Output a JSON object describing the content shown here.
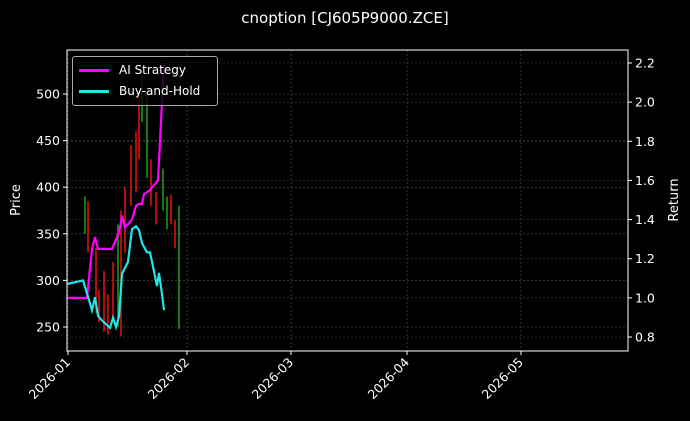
{
  "chart_data": {
    "type": "line",
    "title": "cnoption [CJ605P9000.ZCE]",
    "xlabel": "",
    "ylabel": "Price",
    "y2label": "Return",
    "x_ticks": [
      "2026-01",
      "2026-02",
      "2026-03",
      "2026-04",
      "2026-05"
    ],
    "y_ticks": [
      250,
      300,
      350,
      400,
      450,
      500
    ],
    "y2_ticks": [
      0.8,
      1.0,
      1.2,
      1.4,
      1.6,
      1.8,
      2.0,
      2.2
    ],
    "ylim": [
      225,
      545
    ],
    "y2lim": [
      0.73,
      2.25
    ],
    "grid": true,
    "legend_position": "upper left",
    "series": [
      {
        "name": "AI Strategy",
        "color": "#ff00ff",
        "axis": "right",
        "x": [
          67,
          83,
          87,
          92,
          95,
          98,
          101,
          112,
          117,
          120,
          122,
          125,
          132,
          136,
          139,
          142,
          144,
          147,
          150,
          153,
          158,
          164
        ],
        "values": [
          1.0,
          1.0,
          1.0,
          1.25,
          1.31,
          1.25,
          1.25,
          1.25,
          1.31,
          1.36,
          1.42,
          1.36,
          1.4,
          1.47,
          1.48,
          1.48,
          1.53,
          1.54,
          1.55,
          1.57,
          1.6,
          2.2
        ]
      },
      {
        "name": "Buy-and-Hold",
        "color": "#22e5e5",
        "axis": "left",
        "x": [
          67,
          83,
          87,
          92,
          95,
          98,
          101,
          106,
          110,
          113,
          116,
          119,
          122,
          128,
          132,
          136,
          139,
          142,
          147,
          150,
          152,
          157,
          159,
          162,
          164
        ],
        "values": [
          296,
          300,
          286,
          268,
          282,
          262,
          258,
          253,
          249,
          260,
          250,
          261,
          307,
          320,
          355,
          358,
          354,
          340,
          330,
          330,
          320,
          294,
          308,
          285,
          268
        ]
      }
    ],
    "candles": [
      {
        "x": 85,
        "low": 350,
        "high": 390,
        "color": "green"
      },
      {
        "x": 88,
        "low": 330,
        "high": 385,
        "color": "red"
      },
      {
        "x": 96,
        "low": 265,
        "high": 335,
        "color": "red"
      },
      {
        "x": 99,
        "low": 255,
        "high": 290,
        "color": "red"
      },
      {
        "x": 104,
        "low": 245,
        "high": 310,
        "color": "red"
      },
      {
        "x": 108,
        "low": 242,
        "high": 285,
        "color": "red"
      },
      {
        "x": 113,
        "low": 260,
        "high": 320,
        "color": "red"
      },
      {
        "x": 118,
        "low": 250,
        "high": 360,
        "color": "green"
      },
      {
        "x": 121,
        "low": 240,
        "high": 375,
        "color": "red"
      },
      {
        "x": 125,
        "low": 330,
        "high": 400,
        "color": "red"
      },
      {
        "x": 131,
        "low": 380,
        "high": 445,
        "color": "red"
      },
      {
        "x": 136,
        "low": 395,
        "high": 460,
        "color": "red"
      },
      {
        "x": 139,
        "low": 430,
        "high": 500,
        "color": "red"
      },
      {
        "x": 142,
        "low": 470,
        "high": 520,
        "color": "green"
      },
      {
        "x": 147,
        "low": 410,
        "high": 500,
        "color": "green"
      },
      {
        "x": 151,
        "low": 380,
        "high": 430,
        "color": "red"
      },
      {
        "x": 156,
        "low": 360,
        "high": 395,
        "color": "red"
      },
      {
        "x": 163,
        "low": 375,
        "high": 420,
        "color": "green"
      },
      {
        "x": 167,
        "low": 355,
        "high": 390,
        "color": "green"
      },
      {
        "x": 171,
        "low": 360,
        "high": 392,
        "color": "red"
      },
      {
        "x": 175,
        "low": 335,
        "high": 365,
        "color": "red"
      },
      {
        "x": 179,
        "low": 248,
        "high": 380,
        "color": "green"
      }
    ]
  },
  "legend": {
    "items": [
      {
        "label": "AI Strategy",
        "color": "#ff00ff"
      },
      {
        "label": "Buy-and-Hold",
        "color": "#22e5e5"
      }
    ]
  },
  "axes": {
    "left_label": "Price",
    "right_label": "Return"
  }
}
